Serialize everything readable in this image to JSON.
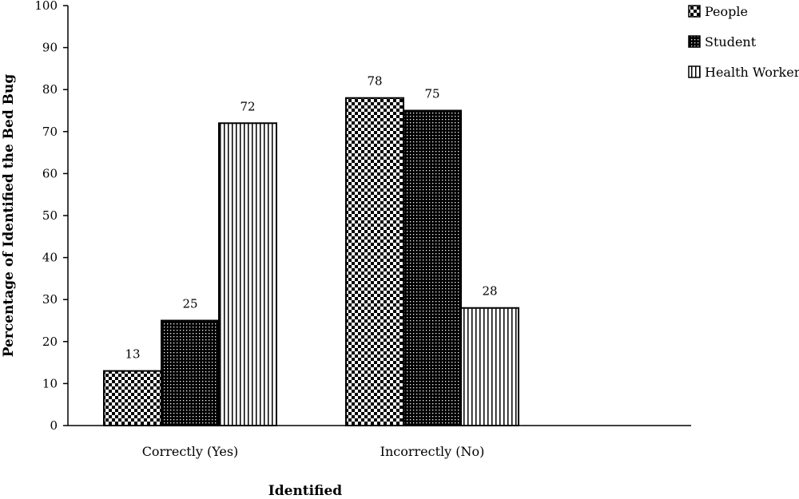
{
  "chart_data": {
    "type": "bar",
    "title": "",
    "xlabel": "Identified",
    "ylabel": "Percentage of Identified the Bed Bug",
    "categories": [
      "Correctly (Yes)",
      "Incorrectly (No)"
    ],
    "series": [
      {
        "name": "People",
        "values": [
          13,
          78
        ],
        "pattern": "checker"
      },
      {
        "name": "Student",
        "values": [
          25,
          75
        ],
        "pattern": "dots"
      },
      {
        "name": "Health Worker",
        "values": [
          72,
          28
        ],
        "pattern": "vlines"
      }
    ],
    "ylim": [
      0,
      100
    ],
    "yticks": [
      0,
      10,
      20,
      30,
      40,
      50,
      60,
      70,
      80,
      90,
      100
    ],
    "grid": false,
    "legend": "top-right",
    "colors": {
      "ink": "#000000",
      "background": "#ffffff"
    }
  }
}
